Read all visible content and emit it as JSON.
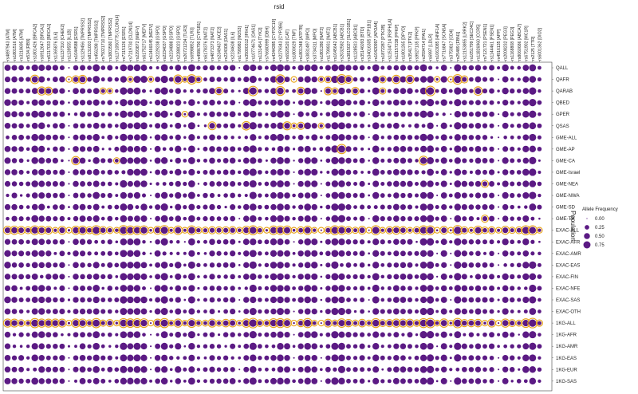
{
  "chart_data": {
    "type": "dot-matrix",
    "xlabel": "rsid",
    "ylabel": "Population",
    "columns": [
      "rs4897943 [ATM]",
      "rs1801516 [ATM]",
      "rs3218695 [ATM]",
      "rs534 [RB9]",
      "rs1801426 [BRCA2]",
      "rs6912647 [BRCA1]",
      "rs5217033 [BRCA1]",
      "rs1365876 [IL6]",
      "rs1137310 [CHEK2]",
      "rs1139555 [IL1B]",
      "rs1044588 [ESR1]",
      "rs1129456 [TMPRSS2]",
      "rs8131003 [TMPRSS2]",
      "rs456298 [TMPRSS2]",
      "rs75021710 [TMPRSS2]",
      "rs3803580 [TMPRSS2]",
      "rs1171050775 [CLDN14]",
      "rs7315126 [ESR1]",
      "rs7219730 [CLDN14]",
      "rs2293872 [MEFV]",
      "rs61752717 [MEFV]",
      "rs11466045 [MEFV]",
      "rs2229238 [GSPD]",
      "rs2234037 [GSPD]",
      "rs2234888 [GSPD]",
      "rs2288023 [GSPD]",
      "rs26721234 [TLR3]",
      "rs6998852 [TLR3]",
      "rs4986790 [CYP1B1]",
      "rs6178376 [NAT2]",
      "rs4873373 [NAT2]",
      "rs2349437 [ACE2]",
      "rs224308 [OAS1]",
      "rs2234608 [IL6]",
      "rs1799983 [NOS3]",
      "rs35000312 [IFIH1]",
      "rs10774671 [OAS1]",
      "rs1131454 [TYK2]",
      "rs76680999 [DBH]",
      "rs4244285 [CYP2C19]",
      "rs2279343 [CYP2B6]",
      "rs6920520 [CAT]",
      "rs1800629 [TNF]",
      "rs1801348 [ATP7B]",
      "rs3831497 [MPO]",
      "rs3734311 [MPO]",
      "rs1801280 [NAT2]",
      "rs1799931 [NAT2]",
      "rs1045642 [ABCB1]",
      "rs2032582 [ABCB1]",
      "rs3815027 [SLCO1B1]",
      "rs1128503 [ABCB1]",
      "rs35146093 [BTD]",
      "rs34016305 [ATP1B1]",
      "rs10420997 [APOA4]",
      "rs1872287 [PTK2B]",
      "rs11534714 [RSPH1A]",
      "rs12157238 [PFKP]",
      "rs1801265 [DPYD]",
      "rs35417 [PTK2]",
      "rs9927135 [PFKP]",
      "rs2594714 [PAI1]",
      "rs6997 [LDLR]",
      "rs1063085 [HNF1A]",
      "rs7716847 [SCN5A]",
      "rs3750817 [CD4]",
      "rs25489 [FBN1]",
      "rs12153855 [LRRK2]",
      "rs1051799 [SEC24C]",
      "rs11826960 [CCR5]",
      "rs7121721 [PSEN1]",
      "rs1144461 [PSEN1]",
      "rs4916135 [APP]",
      "rs2008232 [PEG3]",
      "rs1168808 [PEG3]",
      "rs8060686 [ABCA7]",
      "rs6751902 [MC1R]",
      "rs2125 [TTR]",
      "rs6001362 [DIO2]"
    ],
    "rows": [
      "QALL",
      "QAFR",
      "QARAB",
      "QBED",
      "GPER",
      "QSAS",
      "GME-ALL",
      "GME-AP",
      "GME-CA",
      "GME-Israel",
      "GME-NEA",
      "GME-NWA",
      "GME-SD",
      "GME-TP",
      "EXAC-ALL",
      "EXAC-AFR",
      "EXAC-AMR",
      "EXAC-EAS",
      "EXAC-FIN",
      "EXAC-NFE",
      "EXAC-SAS",
      "EXAC-OTH",
      "1KG-ALL",
      "1KG-AFR",
      "1KG-AMR",
      "1KG-EAS",
      "1KG-EUR",
      "1KG-SAS"
    ],
    "value_range": [
      0,
      0.8
    ],
    "highlight_rows": [
      "EXAC-ALL",
      "1KG-ALL"
    ],
    "highlighted_cells": [
      [
        "QAFR",
        4
      ],
      [
        "QAFR",
        9
      ],
      [
        "QAFR",
        10
      ],
      [
        "QAFR",
        11
      ],
      [
        "QAFR",
        18
      ],
      [
        "QAFR",
        21
      ],
      [
        "QAFR",
        25
      ],
      [
        "QAFR",
        26
      ],
      [
        "QAFR",
        27
      ],
      [
        "QAFR",
        28
      ],
      [
        "QAFR",
        40
      ],
      [
        "QAFR",
        42
      ],
      [
        "QAFR",
        46
      ],
      [
        "QAFR",
        47
      ],
      [
        "QAFR",
        49
      ],
      [
        "QAFR",
        50
      ],
      [
        "QAFR",
        55
      ],
      [
        "QAFR",
        57
      ],
      [
        "QAFR",
        59
      ],
      [
        "QAFR",
        63
      ],
      [
        "QAFR",
        65
      ],
      [
        "QAFR",
        66
      ],
      [
        "QAFR",
        67
      ],
      [
        "QARAB",
        5
      ],
      [
        "QARAB",
        6
      ],
      [
        "QARAB",
        14
      ],
      [
        "QARAB",
        15
      ],
      [
        "QARAB",
        31
      ],
      [
        "QARAB",
        36
      ],
      [
        "QARAB",
        40
      ],
      [
        "QARAB",
        43
      ],
      [
        "QARAB",
        47
      ],
      [
        "QARAB",
        48
      ],
      [
        "QARAB",
        51
      ],
      [
        "QARAB",
        55
      ],
      [
        "QARAB",
        62
      ],
      [
        "QARAB",
        69
      ],
      [
        "GPER",
        26
      ],
      [
        "QSAS",
        30
      ],
      [
        "QSAS",
        35
      ],
      [
        "QSAS",
        41
      ],
      [
        "QSAS",
        42
      ],
      [
        "QSAS",
        43
      ],
      [
        "QSAS",
        46
      ],
      [
        "GME-AP",
        49
      ],
      [
        "GME-CA",
        10
      ],
      [
        "GME-CA",
        16
      ],
      [
        "GME-CA",
        61
      ],
      [
        "GME-NEA",
        70
      ],
      [
        "GME-TP",
        70
      ]
    ],
    "legend": {
      "title": "Allele Frequency",
      "entries": [
        {
          "label": "0.00",
          "value": 0.0
        },
        {
          "label": "0.25",
          "value": 0.25
        },
        {
          "label": "0.50",
          "value": 0.5
        },
        {
          "label": "0.75",
          "value": 0.75
        }
      ],
      "position": "right"
    },
    "colors": {
      "dot": "#5b1a84",
      "highlight_ring": "#e8a317",
      "border": "#444444"
    }
  }
}
